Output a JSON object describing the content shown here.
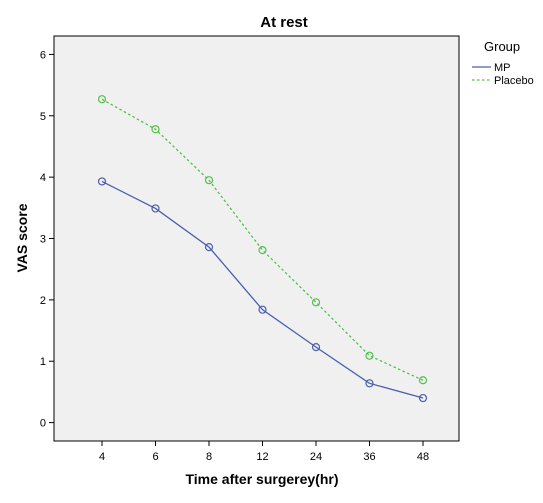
{
  "chart_data": {
    "type": "line",
    "title": "At rest",
    "xlabel": "Time after surgerey(hr)",
    "ylabel": "VAS score",
    "categories": [
      "4",
      "6",
      "8",
      "12",
      "24",
      "36",
      "48"
    ],
    "ylim": [
      -0.3,
      6.3
    ],
    "yticks": [
      0,
      1,
      2,
      3,
      4,
      5,
      6
    ],
    "grid": false,
    "legend": {
      "title": "Group",
      "placement": "right-top"
    },
    "series": [
      {
        "name": "MP",
        "values": [
          3.93,
          3.49,
          2.86,
          1.84,
          1.23,
          0.64,
          0.4
        ],
        "color": "#4a5fae",
        "line_style": "solid",
        "marker": "circle"
      },
      {
        "name": "Placebo",
        "values": [
          5.27,
          4.78,
          3.95,
          2.81,
          1.96,
          1.09,
          0.69
        ],
        "color": "#4fc24a",
        "line_style": "dotted",
        "marker": "circle"
      }
    ],
    "plot_background": "#f0f0f0"
  }
}
